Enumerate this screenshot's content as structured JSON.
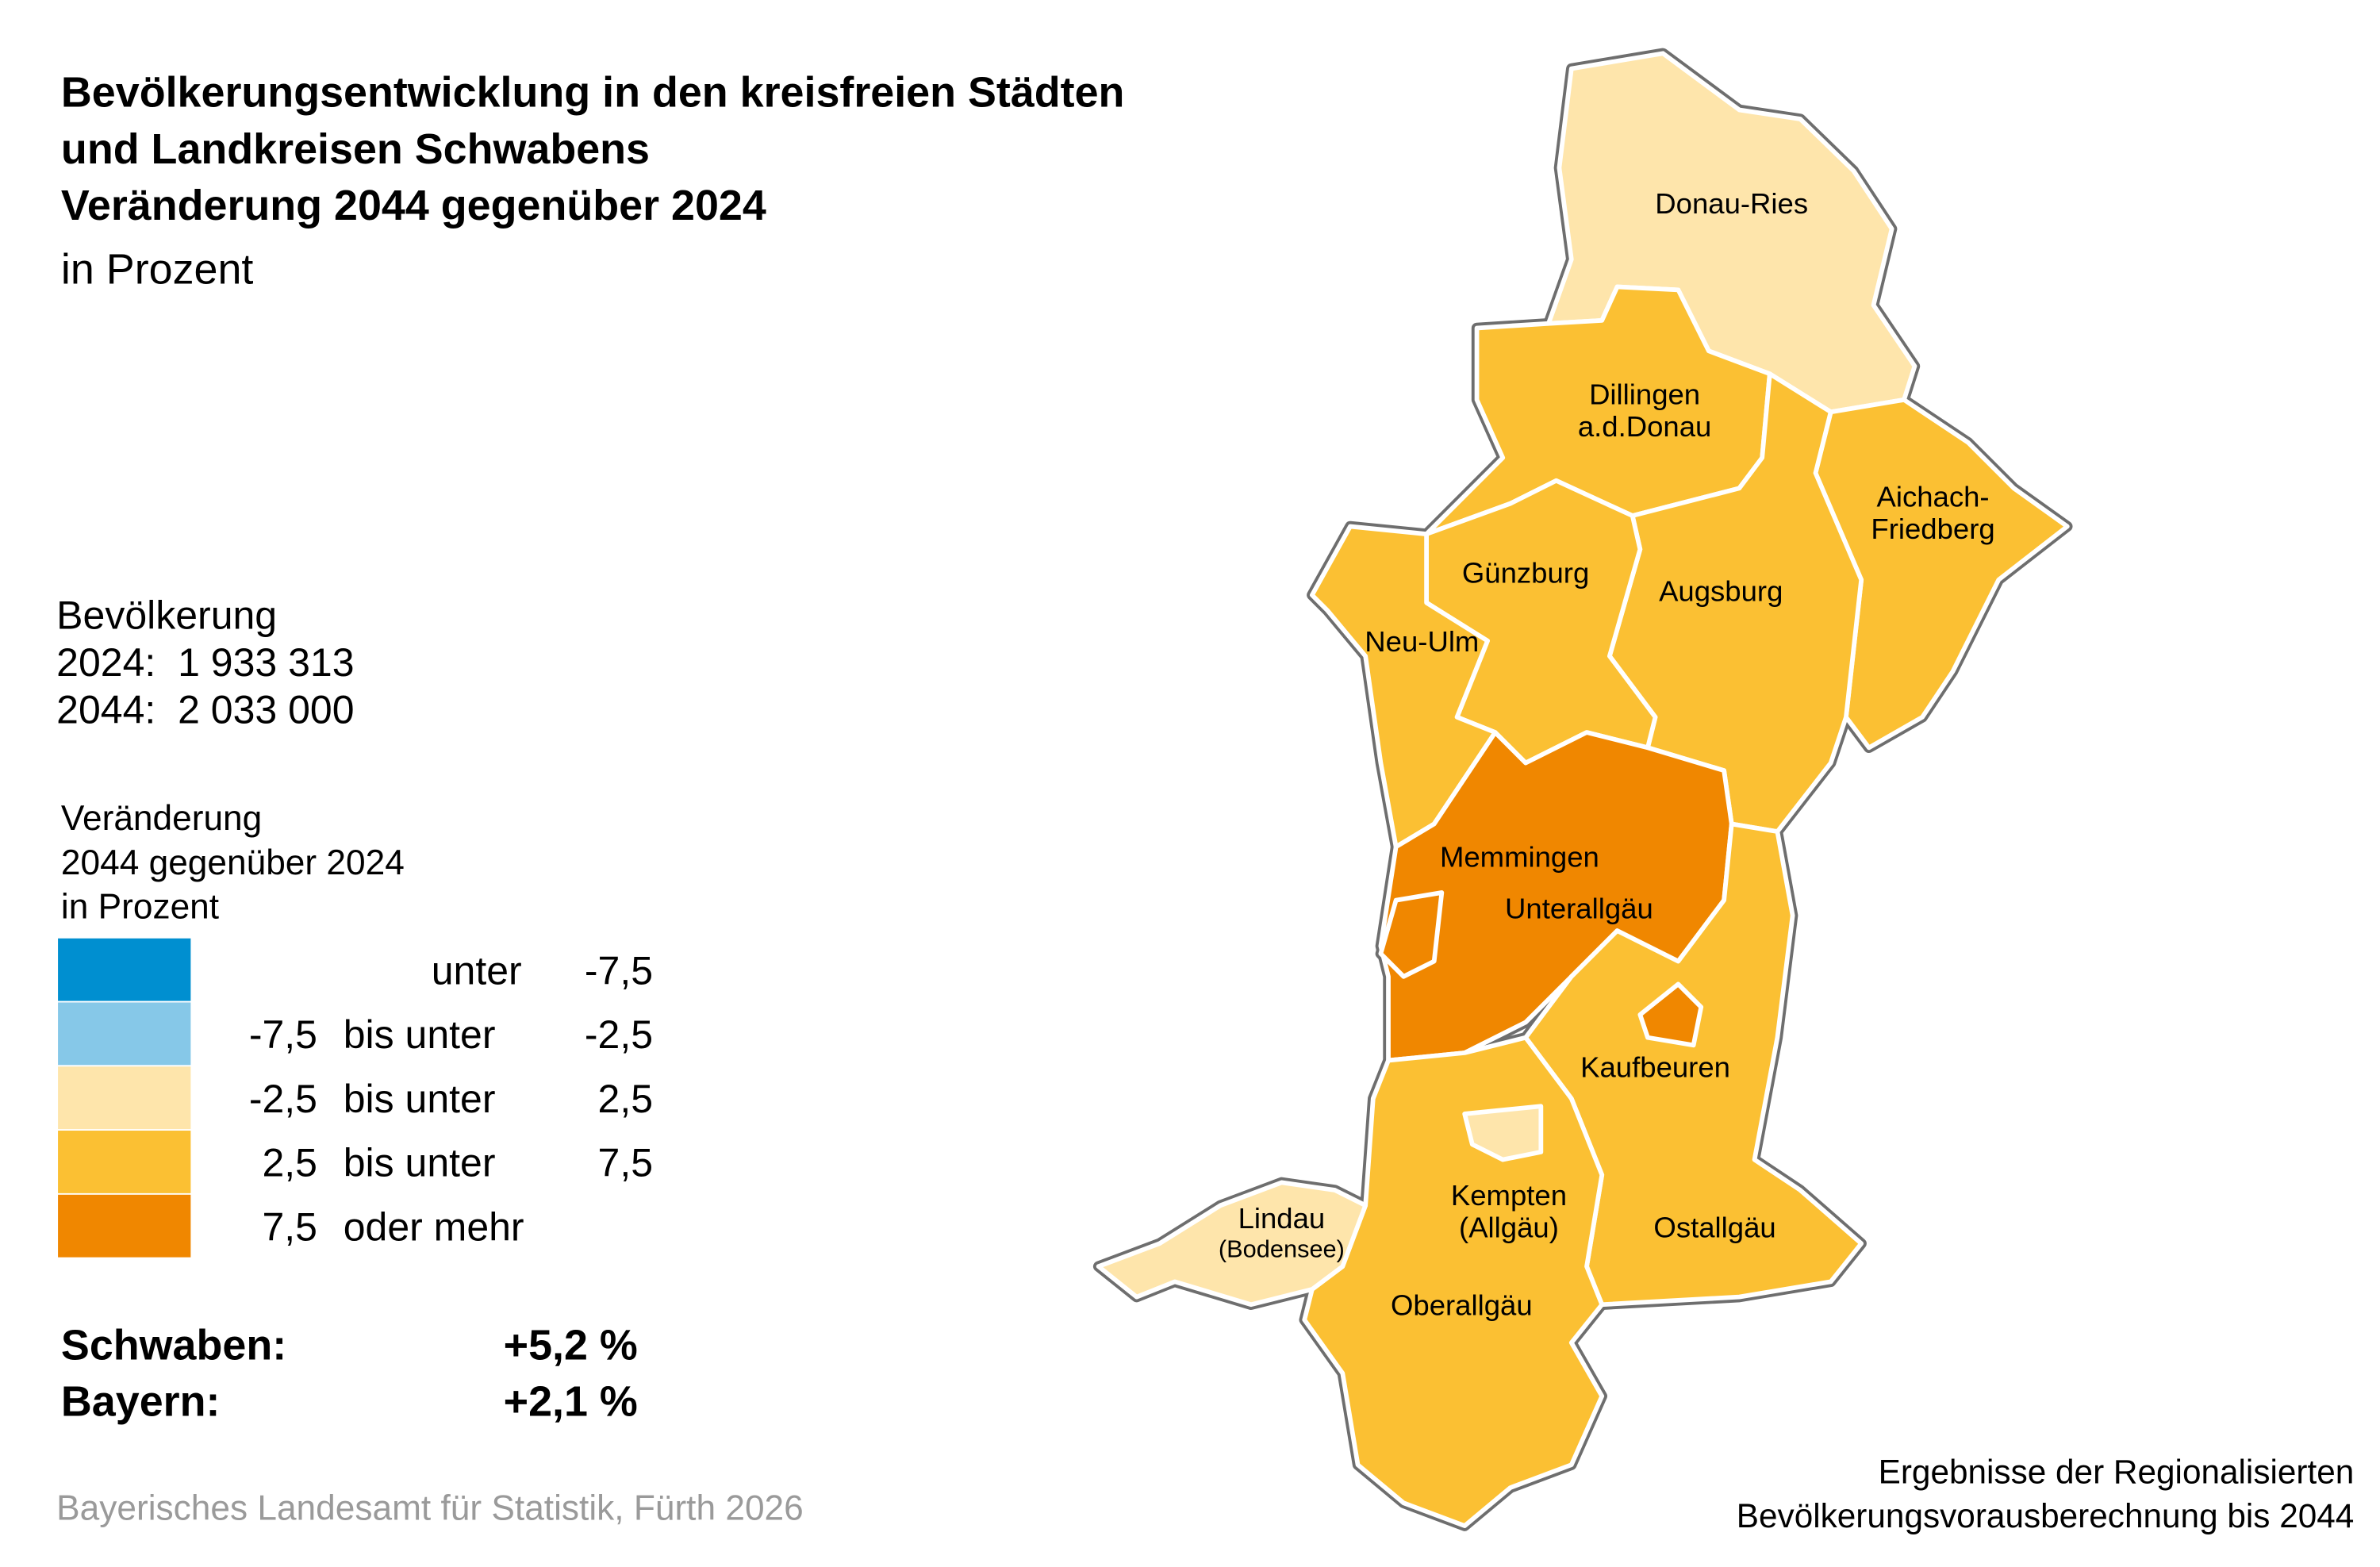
{
  "title": {
    "lines": [
      "Bevölkerungsentwicklung in den kreisfreien Städten",
      "und Landkreisen Schwabens",
      "Veränderung 2044 gegenüber 2024"
    ],
    "unit": "in Prozent"
  },
  "population": {
    "label": "Bevölkerung",
    "rows": [
      {
        "year": "2024:",
        "value": "1 933 313"
      },
      {
        "year": "2044:",
        "value": "2 033 000"
      }
    ]
  },
  "legend": {
    "title_lines": [
      "Veränderung",
      "2044 gegenüber 2024",
      "in Prozent"
    ],
    "classes": [
      {
        "from": "",
        "mid": "unter",
        "to": "-7,5",
        "color": "#008fd0"
      },
      {
        "from": "-7,5",
        "mid": "bis unter",
        "to": "-2,5",
        "color": "#86c8e8"
      },
      {
        "from": "-2,5",
        "mid": "bis unter",
        "to": "2,5",
        "color": "#fee5ab"
      },
      {
        "from": "2,5",
        "mid": "bis unter",
        "to": "7,5",
        "color": "#fbc033"
      },
      {
        "from": "7,5",
        "mid": "oder mehr",
        "to": "",
        "color": "#f08700"
      }
    ]
  },
  "totals": [
    {
      "label": "Schwaben:",
      "value": "+5,2 %"
    },
    {
      "label": "Bayern:",
      "value": "+2,1 %"
    }
  ],
  "map": {
    "outline_color": "#6e6e6e",
    "border_color": "#ffffff",
    "regions": [
      {
        "name": "Donau-Ries",
        "class": 2
      },
      {
        "name": "Dillingen a.d.Donau",
        "label_lines": [
          "Dillingen",
          "a.d.Donau"
        ],
        "class": 3
      },
      {
        "name": "Aichach-Friedberg",
        "label_lines": [
          "Aichach-",
          "Friedberg"
        ],
        "class": 3
      },
      {
        "name": "Augsburg",
        "class": 3
      },
      {
        "name": "Günzburg",
        "class": 3
      },
      {
        "name": "Neu-Ulm",
        "class": 3
      },
      {
        "name": "Unterallgäu",
        "class": 4
      },
      {
        "name": "Memmingen",
        "class": 4
      },
      {
        "name": "Ostallgäu",
        "class": 3
      },
      {
        "name": "Kaufbeuren",
        "class": 4
      },
      {
        "name": "Oberallgäu",
        "class": 3
      },
      {
        "name": "Lindau (Bodensee)",
        "label_lines": [
          "Lindau",
          "(Bodensee)"
        ],
        "class": 2
      },
      {
        "name": "Kempten (Allgäu)",
        "label_lines": [
          "Kempten",
          "(Allgäu)"
        ],
        "class": 2
      }
    ]
  },
  "source": "Bayerisches Landesamt für Statistik, Fürth 2026",
  "note_lines": [
    "Ergebnisse der Regionalisierten",
    "Bevölkerungsvorausberechnung bis 2044"
  ]
}
